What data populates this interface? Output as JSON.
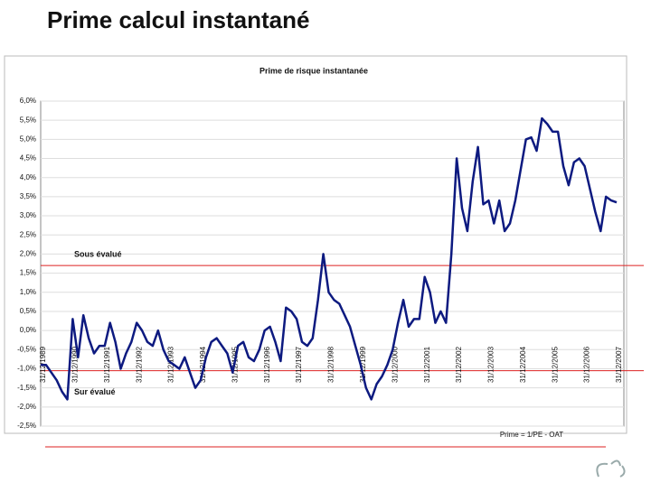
{
  "page_title": "Prime calcul instantané",
  "chart_data": {
    "type": "line",
    "title": "Prime de risque instantanée",
    "footnote": "Prime = 1/PE - OAT",
    "categories": [
      "31/12/1989",
      null,
      null,
      null,
      null,
      null,
      "31/12/1990",
      null,
      null,
      null,
      null,
      null,
      "31/12/1991",
      null,
      null,
      null,
      null,
      null,
      "31/12/1992",
      null,
      null,
      null,
      null,
      null,
      "31/12/1993",
      null,
      null,
      null,
      null,
      null,
      "31/12/1994",
      null,
      null,
      null,
      null,
      null,
      "31/12/1995",
      null,
      null,
      null,
      null,
      null,
      "31/12/1996",
      null,
      null,
      null,
      null,
      null,
      "31/12/1997",
      null,
      null,
      null,
      null,
      null,
      "31/12/1998",
      null,
      null,
      null,
      null,
      null,
      "31/12/1999",
      null,
      null,
      null,
      null,
      null,
      "31/12/2000",
      null,
      null,
      null,
      null,
      null,
      "31/12/2001",
      null,
      null,
      null,
      null,
      null,
      "31/12/2002",
      null,
      null,
      null,
      null,
      null,
      "31/12/2003",
      null,
      null,
      null,
      null,
      null,
      "31/12/2004",
      null,
      null,
      null,
      null,
      null,
      "31/12/2005",
      null,
      null,
      null,
      null,
      null,
      "31/12/2006",
      null,
      null,
      null,
      null,
      null,
      "31/12/2007"
    ],
    "series": [
      {
        "color": "#0d1a80",
        "values": [
          -0.9,
          -0.9,
          -1.1,
          -1.3,
          -1.6,
          -1.8,
          0.3,
          -0.7,
          0.4,
          -0.2,
          -0.6,
          -0.4,
          -0.4,
          0.2,
          -0.3,
          -1.0,
          -0.6,
          -0.3,
          0.2,
          0.0,
          -0.3,
          -0.4,
          0.0,
          -0.5,
          -0.8,
          -0.9,
          -1.0,
          -0.7,
          -1.1,
          -1.5,
          -1.3,
          -0.7,
          -0.3,
          -0.2,
          -0.4,
          -0.6,
          -1.1,
          -0.4,
          -0.3,
          -0.7,
          -0.8,
          -0.5,
          0.0,
          0.1,
          -0.3,
          -0.8,
          0.6,
          0.5,
          0.3,
          -0.3,
          -0.4,
          -0.2,
          0.8,
          2.0,
          1.0,
          0.8,
          0.7,
          0.4,
          0.1,
          -0.4,
          -0.9,
          -1.5,
          -1.8,
          -1.4,
          -1.2,
          -0.9,
          -0.5,
          0.2,
          0.8,
          0.1,
          0.3,
          0.3,
          1.4,
          1.0,
          0.2,
          0.5,
          0.2,
          2.0,
          4.5,
          3.2,
          2.6,
          3.9,
          4.8,
          3.3,
          3.4,
          2.8,
          3.4,
          2.6,
          2.8,
          3.4,
          4.2,
          5.0,
          5.05,
          4.7,
          5.55,
          5.4,
          5.2,
          5.2,
          4.3,
          3.8,
          4.4,
          4.5,
          4.3,
          3.7,
          3.1,
          2.6,
          3.5,
          3.4,
          3.35
        ]
      }
    ],
    "ylim": [
      -2.5,
      6.0
    ],
    "yticks": [
      {
        "value": 6.0,
        "label": "6,0%"
      },
      {
        "value": 5.5,
        "label": "5,5%"
      },
      {
        "value": 5.0,
        "label": "5,0%"
      },
      {
        "value": 4.5,
        "label": "4,5%"
      },
      {
        "value": 4.0,
        "label": "4,0%"
      },
      {
        "value": 3.5,
        "label": "3,5%"
      },
      {
        "value": 3.0,
        "label": "3,0%"
      },
      {
        "value": 2.5,
        "label": "2,5%"
      },
      {
        "value": 2.0,
        "label": "2,0%"
      },
      {
        "value": 1.5,
        "label": "1,5%"
      },
      {
        "value": 1.0,
        "label": "1,0%"
      },
      {
        "value": 0.5,
        "label": "0,5%"
      },
      {
        "value": 0.0,
        "label": "0,0%"
      },
      {
        "value": -0.5,
        "label": "-0,5%"
      },
      {
        "value": -1.0,
        "label": "-1,0%"
      },
      {
        "value": -1.5,
        "label": "-1,5%"
      },
      {
        "value": -2.0,
        "label": "-2,0%"
      },
      {
        "value": -2.5,
        "label": "-2,5%"
      }
    ],
    "grid": true,
    "reference_lines": [
      {
        "value": 1.7,
        "label": "Sous évalué",
        "color": "#d22"
      },
      {
        "value": -1.05,
        "label": "Sur évalué",
        "color": "#d22"
      }
    ]
  }
}
